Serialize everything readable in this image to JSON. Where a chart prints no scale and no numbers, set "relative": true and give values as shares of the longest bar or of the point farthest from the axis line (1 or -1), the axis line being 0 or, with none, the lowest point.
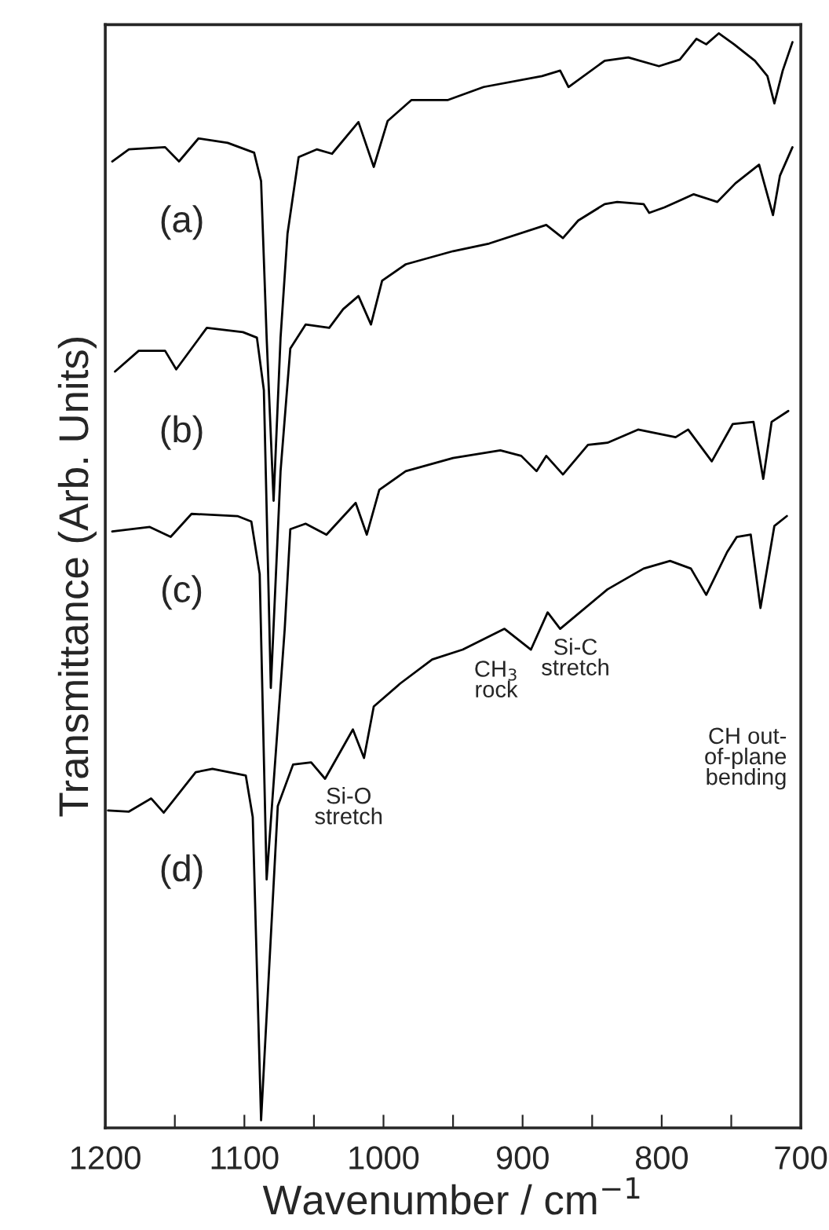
{
  "chart_data": {
    "type": "line",
    "relative": true,
    "xlabel": "Wavenumber / cm$^{−1}$",
    "ylabel": "Transmittance (Arb. Units)",
    "xlim": [
      1200,
      700
    ],
    "xticks": [
      1200,
      {
        "value": 1150,
        "label": null
      },
      1100,
      {
        "value": 1050,
        "label": null
      },
      1000,
      {
        "value": 950,
        "label": null
      },
      900,
      {
        "value": 850,
        "label": null
      },
      800,
      {
        "value": 750,
        "label": null
      },
      700
    ],
    "tick_labels": "x",
    "line_style": "solid",
    "series": [
      {
        "name": "(a)",
        "color": "#000000",
        "x": [
          1195,
          1183,
          1157,
          1147,
          1133,
          1112,
          1093,
          1088,
          1084,
          1079,
          1074,
          1069,
          1061,
          1048,
          1037,
          1018,
          1007,
          997,
          980,
          954,
          928,
          886,
          873,
          867,
          841,
          824,
          802,
          787,
          775,
          768,
          759,
          748,
          733,
          724,
          719,
          713,
          706
        ],
        "values": [
          0.883,
          0.894,
          0.896,
          0.883,
          0.904,
          0.9,
          0.891,
          0.865,
          0.722,
          0.573,
          0.722,
          0.817,
          0.887,
          0.894,
          0.89,
          0.919,
          0.878,
          0.92,
          0.939,
          0.939,
          0.951,
          0.961,
          0.966,
          0.951,
          0.975,
          0.978,
          0.97,
          0.976,
          0.995,
          0.99,
          1.0,
          0.99,
          0.975,
          0.961,
          0.936,
          0.966,
          0.992
        ]
      },
      {
        "name": "(b)",
        "color": "#000000",
        "x": [
          1193,
          1176,
          1157,
          1149,
          1127,
          1101,
          1091,
          1086,
          1081,
          1074,
          1067,
          1056,
          1039,
          1029,
          1018,
          1009,
          1001,
          984,
          950,
          924,
          883,
          871,
          860,
          841,
          832,
          813,
          809,
          798,
          777,
          760,
          747,
          730,
          720,
          715,
          706
        ],
        "values": [
          0.691,
          0.71,
          0.71,
          0.693,
          0.731,
          0.727,
          0.722,
          0.674,
          0.402,
          0.6,
          0.712,
          0.734,
          0.731,
          0.748,
          0.76,
          0.734,
          0.774,
          0.789,
          0.801,
          0.808,
          0.825,
          0.813,
          0.829,
          0.844,
          0.846,
          0.844,
          0.836,
          0.841,
          0.853,
          0.846,
          0.863,
          0.88,
          0.834,
          0.87,
          0.896
        ]
      },
      {
        "name": "(c)",
        "color": "#000000",
        "x": [
          1195,
          1168,
          1153,
          1138,
          1105,
          1095,
          1089,
          1084,
          1071,
          1067,
          1056,
          1041,
          1020,
          1012,
          1003,
          984,
          950,
          916,
          901,
          890,
          883,
          871,
          853,
          839,
          817,
          790,
          781,
          764,
          749,
          734,
          727,
          721,
          709
        ],
        "values": [
          0.545,
          0.549,
          0.54,
          0.561,
          0.559,
          0.554,
          0.506,
          0.227,
          0.456,
          0.547,
          0.552,
          0.542,
          0.571,
          0.542,
          0.583,
          0.6,
          0.612,
          0.619,
          0.614,
          0.6,
          0.614,
          0.597,
          0.624,
          0.626,
          0.638,
          0.631,
          0.638,
          0.609,
          0.643,
          0.645,
          0.593,
          0.645,
          0.655
        ]
      },
      {
        "name": "(d)",
        "color": "#000000",
        "x": [
          1198,
          1183,
          1167,
          1158,
          1135,
          1123,
          1099,
          1094,
          1088,
          1076,
          1065,
          1052,
          1042,
          1022,
          1014,
          1007,
          988,
          965,
          943,
          913,
          894,
          882,
          873,
          839,
          813,
          794,
          779,
          768,
          753,
          746,
          736,
          729,
          719,
          710
        ],
        "values": [
          0.29,
          0.289,
          0.301,
          0.288,
          0.325,
          0.328,
          0.322,
          0.284,
          0.007,
          0.294,
          0.332,
          0.334,
          0.319,
          0.364,
          0.338,
          0.385,
          0.406,
          0.428,
          0.437,
          0.456,
          0.437,
          0.471,
          0.456,
          0.492,
          0.511,
          0.518,
          0.511,
          0.487,
          0.526,
          0.54,
          0.542,
          0.475,
          0.55,
          0.559
        ]
      }
    ],
    "annotations": [
      "Si-O\nstretch",
      "CH$_{3}$\nrock",
      "Si-C\nstretch",
      "CH out-\nof-plane\nbending"
    ]
  }
}
